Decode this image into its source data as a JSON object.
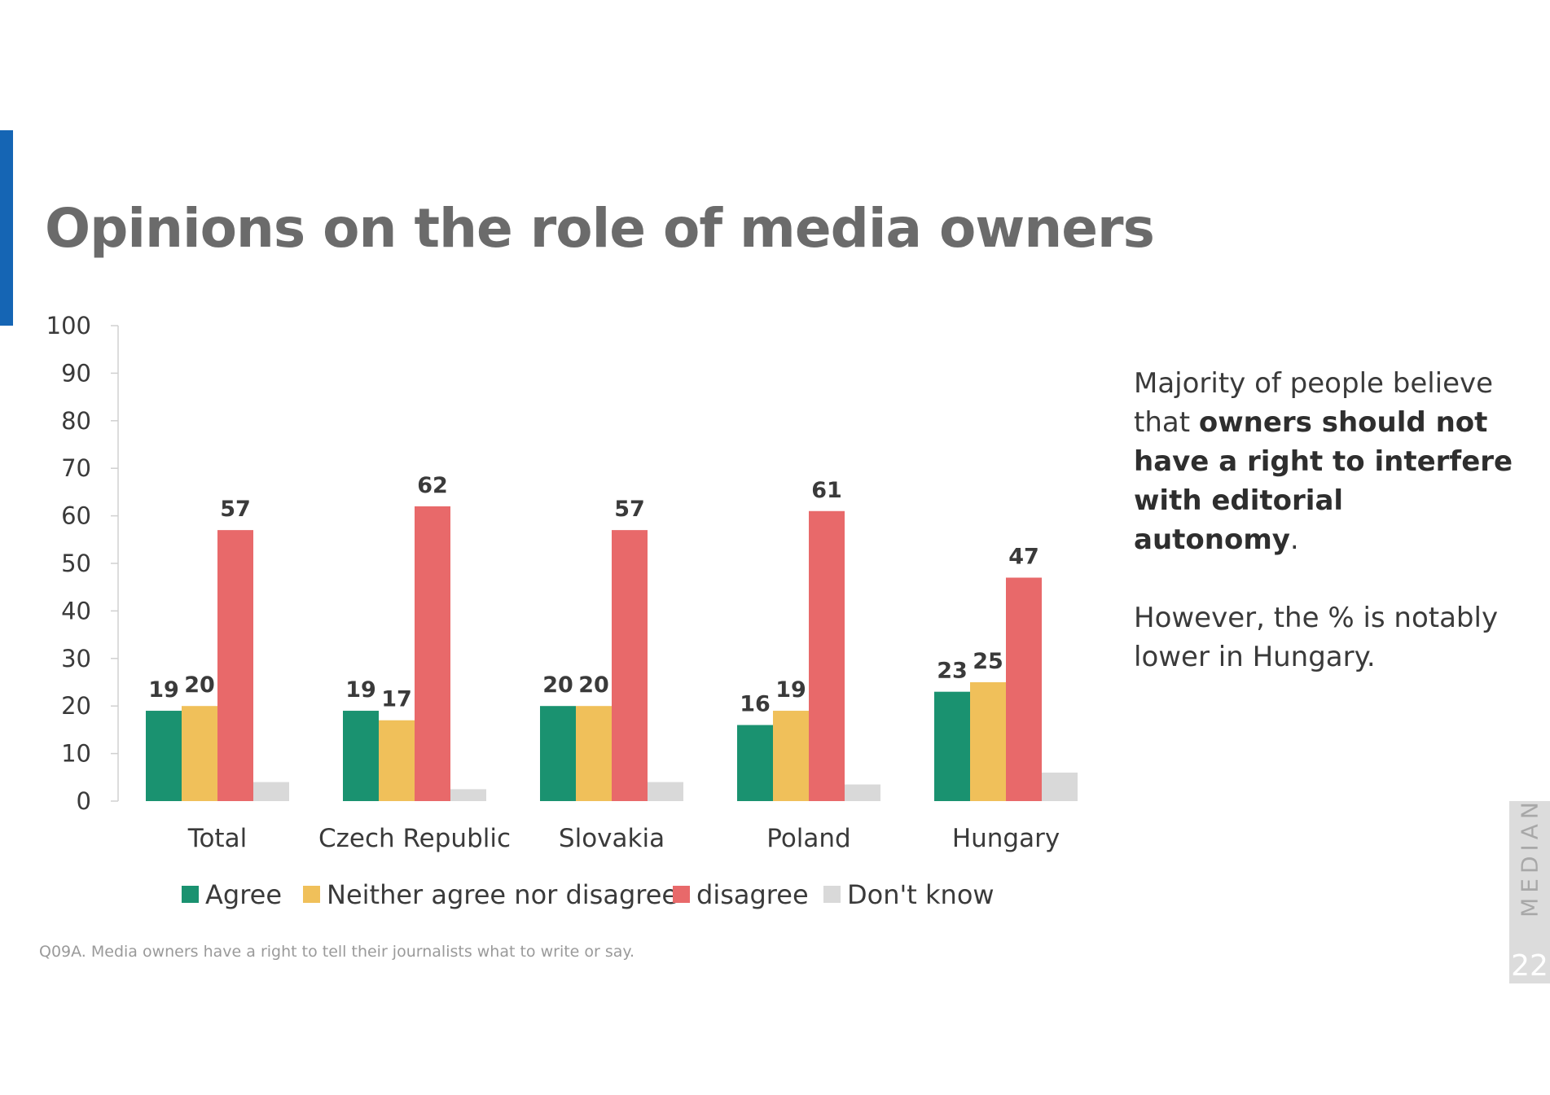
{
  "title": "Opinions on the role of media owners",
  "chart_data": {
    "type": "bar",
    "title": "",
    "xlabel": "",
    "ylabel": "",
    "ylim": [
      0,
      100
    ],
    "yticks": [
      0,
      10,
      20,
      30,
      40,
      50,
      60,
      70,
      80,
      90,
      100
    ],
    "categories": [
      "Total",
      "Czech Republic",
      "Slovakia",
      "Poland",
      "Hungary"
    ],
    "series": [
      {
        "name": "Agree",
        "color": "#1a9270",
        "values": [
          19,
          19,
          20,
          16,
          23
        ],
        "labels": [
          "19",
          "19",
          "20",
          "16",
          "23"
        ]
      },
      {
        "name": "Neither agree nor disagree",
        "color": "#f0c05a",
        "values": [
          20,
          17,
          20,
          19,
          25
        ],
        "labels": [
          "20",
          "17",
          "20",
          "19",
          "25"
        ]
      },
      {
        "name": "disagree",
        "color": "#e8696a",
        "values": [
          57,
          62,
          57,
          61,
          47
        ],
        "labels": [
          "57",
          "62",
          "57",
          "61",
          "47"
        ]
      },
      {
        "name": "Don't know",
        "color": "#d9d9d9",
        "values": [
          4,
          2.5,
          4,
          3.5,
          6
        ],
        "labels": [
          "",
          "",
          "",
          "",
          ""
        ]
      }
    ],
    "grid": false,
    "legend": "bottom"
  },
  "side_text": {
    "line1": "Majority of people believe",
    "line2_plain": "that ",
    "line2_bold": "owners should not",
    "line3_bold": "have a right to interfere",
    "line4_bold": "with editorial autonomy",
    "line4_end": ".",
    "line5": "However, the % is notably",
    "line6": "lower in Hungary."
  },
  "footnote": "Q09A. Media owners have a right to tell their journalists what to write or say.",
  "brand": "MEDIAN",
  "page_number": "22"
}
